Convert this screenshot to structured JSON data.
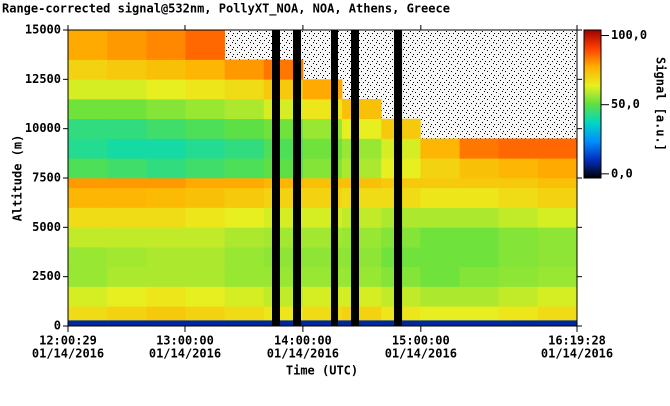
{
  "chart_data": {
    "type": "heatmap",
    "title": "Range-corrected signal@532nm, PollyXT_NOA, NOA, Athens, Greece",
    "x_label": "Time (UTC)",
    "y_label": "Altitude (m)",
    "colorbar_label": "Signal [a.u.]",
    "xlim": [
      43229,
      58768
    ],
    "xticks": [
      {
        "value": 43229,
        "label": [
          "12:00:29",
          "01/14/2016"
        ]
      },
      {
        "value": 46800,
        "label": [
          "13:00:00",
          "01/14/2016"
        ]
      },
      {
        "value": 50400,
        "label": [
          "14:00:00",
          "01/14/2016"
        ]
      },
      {
        "value": 54000,
        "label": [
          "15:00:00",
          "01/14/2016"
        ]
      },
      {
        "value": 58768,
        "label": [
          "16:19:28",
          "01/14/2016"
        ]
      }
    ],
    "ylim": [
      0,
      15000
    ],
    "yticks": [
      0,
      2500,
      5000,
      7500,
      10000,
      12500,
      15000
    ],
    "clim": [
      -3,
      104
    ],
    "cticks": [
      {
        "value": 0,
        "label": "0,0"
      },
      {
        "value": 50,
        "label": "50,0"
      },
      {
        "value": 100,
        "label": "100,0"
      }
    ],
    "colorscale": [
      "#000000",
      "#0030c0",
      "#0090ff",
      "#00d8c0",
      "#60e040",
      "#e8f020",
      "#ffb000",
      "#ff4000",
      "#a00000"
    ],
    "xbins": [
      43229,
      44424,
      45620,
      46815,
      48010,
      49206,
      50401,
      51596,
      52792,
      53987,
      55182,
      56377,
      57573,
      58768
    ],
    "ybins": [
      0,
      300,
      1000,
      2000,
      3000,
      4000,
      5000,
      6000,
      7000,
      7500,
      8500,
      9500,
      10500,
      11500,
      12500,
      13500,
      15000
    ],
    "z": [
      [
        8,
        8,
        8,
        8,
        8,
        8,
        8,
        8,
        8,
        8,
        8,
        8,
        8
      ],
      [
        68,
        70,
        72,
        70,
        68,
        66,
        68,
        70,
        66,
        64,
        64,
        66,
        68
      ],
      [
        62,
        64,
        66,
        64,
        62,
        60,
        62,
        62,
        60,
        58,
        58,
        60,
        62
      ],
      [
        56,
        58,
        58,
        58,
        56,
        56,
        56,
        56,
        54,
        52,
        54,
        55,
        56
      ],
      [
        56,
        57,
        58,
        58,
        56,
        55,
        55,
        55,
        52,
        52,
        52,
        54,
        55
      ],
      [
        60,
        60,
        60,
        60,
        58,
        57,
        57,
        56,
        54,
        52,
        52,
        54,
        55
      ],
      [
        68,
        68,
        68,
        66,
        64,
        62,
        62,
        60,
        58,
        58,
        58,
        60,
        62
      ],
      [
        76,
        76,
        75,
        74,
        72,
        70,
        70,
        68,
        68,
        66,
        66,
        68,
        70
      ],
      [
        80,
        80,
        80,
        78,
        78,
        76,
        74,
        74,
        72,
        72,
        72,
        72,
        74
      ],
      [
        48,
        46,
        44,
        46,
        48,
        50,
        54,
        58,
        64,
        70,
        74,
        76,
        78
      ],
      [
        42,
        40,
        40,
        42,
        44,
        48,
        52,
        56,
        62,
        76,
        84,
        86,
        86
      ],
      [
        44,
        44,
        46,
        48,
        50,
        52,
        56,
        64,
        72,
        null,
        null,
        null,
        null
      ],
      [
        52,
        52,
        54,
        56,
        58,
        62,
        66,
        74,
        null,
        null,
        null,
        null,
        null
      ],
      [
        62,
        62,
        64,
        66,
        68,
        72,
        78,
        null,
        null,
        null,
        null,
        null,
        null
      ],
      [
        70,
        72,
        74,
        76,
        80,
        84,
        null,
        null,
        null,
        null,
        null,
        null,
        null
      ],
      [
        78,
        80,
        82,
        86,
        null,
        null,
        null,
        null,
        null,
        null,
        null,
        null,
        null
      ]
    ],
    "no_data": [
      [
        49457,
        49701
      ],
      [
        50098,
        50342
      ],
      [
        51258,
        51472
      ],
      [
        51869,
        52113
      ],
      [
        53182,
        53427
      ]
    ]
  }
}
